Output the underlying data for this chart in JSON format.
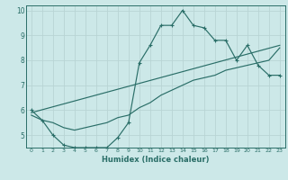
{
  "xlabel": "Humidex (Indice chaleur)",
  "background_color": "#cce8e8",
  "grid_color": "#b8d4d4",
  "line_color": "#2a6e68",
  "xlim": [
    -0.5,
    23.5
  ],
  "ylim": [
    4.5,
    10.2
  ],
  "yticks": [
    5,
    6,
    7,
    8,
    9,
    10
  ],
  "xticks": [
    0,
    1,
    2,
    3,
    4,
    5,
    6,
    7,
    8,
    9,
    10,
    11,
    12,
    13,
    14,
    15,
    16,
    17,
    18,
    19,
    20,
    21,
    22,
    23
  ],
  "series1_x": [
    0,
    1,
    2,
    3,
    4,
    5,
    6,
    7,
    8,
    9,
    10,
    11,
    12,
    13,
    14,
    15,
    16,
    17,
    18,
    19,
    20,
    21,
    22,
    23
  ],
  "series1_y": [
    6.0,
    5.6,
    5.0,
    4.6,
    4.5,
    4.5,
    4.5,
    4.5,
    4.9,
    5.5,
    7.9,
    8.6,
    9.4,
    9.4,
    10.0,
    9.4,
    9.3,
    8.8,
    8.8,
    8.0,
    8.6,
    7.8,
    7.4,
    7.4
  ],
  "series2_x": [
    0,
    1,
    2,
    3,
    4,
    5,
    6,
    7,
    8,
    9,
    10,
    11,
    12,
    13,
    14,
    15,
    16,
    17,
    18,
    19,
    20,
    21,
    22,
    23
  ],
  "series2_y": [
    5.8,
    5.6,
    5.5,
    5.3,
    5.2,
    5.3,
    5.4,
    5.5,
    5.7,
    5.8,
    6.1,
    6.3,
    6.6,
    6.8,
    7.0,
    7.2,
    7.3,
    7.4,
    7.6,
    7.7,
    7.8,
    7.9,
    8.0,
    8.5
  ],
  "series3_x": [
    0,
    23
  ],
  "series3_y": [
    5.9,
    8.6
  ]
}
